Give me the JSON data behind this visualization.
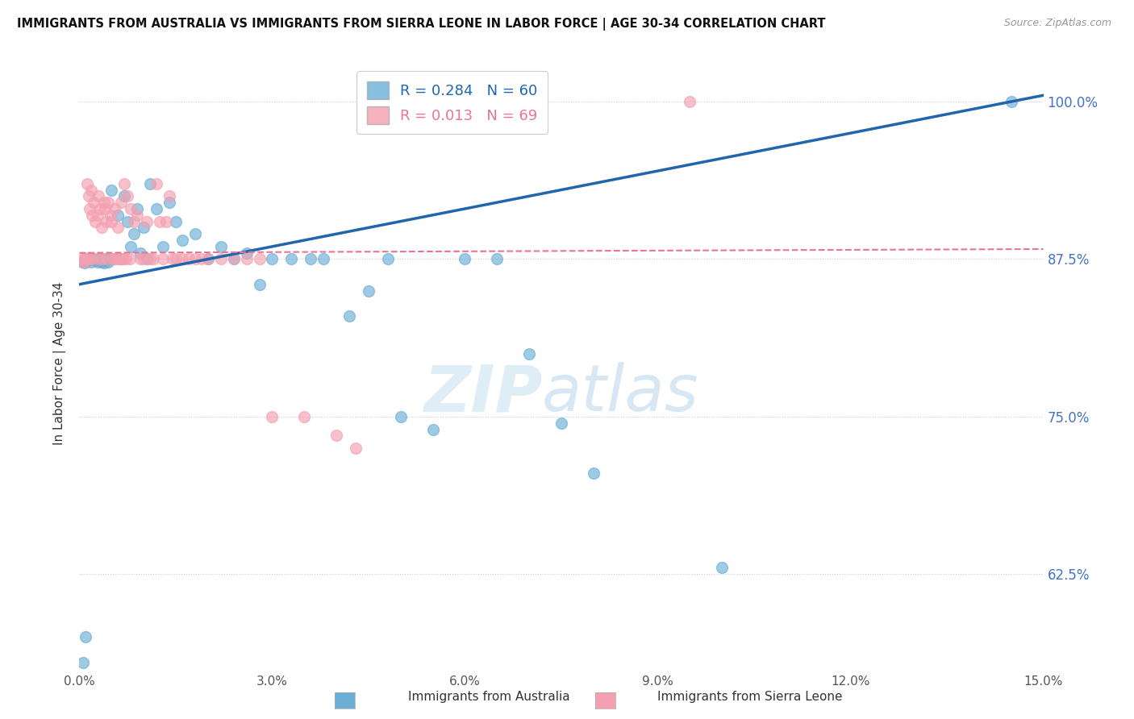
{
  "title": "IMMIGRANTS FROM AUSTRALIA VS IMMIGRANTS FROM SIERRA LEONE IN LABOR FORCE | AGE 30-34 CORRELATION CHART",
  "source": "Source: ZipAtlas.com",
  "ylabel": "In Labor Force | Age 30-34",
  "xlim": [
    0.0,
    15.0
  ],
  "ylim": [
    55.0,
    103.5
  ],
  "yticks": [
    62.5,
    75.0,
    87.5,
    100.0
  ],
  "xticks": [
    0.0,
    3.0,
    6.0,
    9.0,
    12.0,
    15.0
  ],
  "xtick_labels": [
    "0.0%",
    "3.0%",
    "6.0%",
    "9.0%",
    "12.0%",
    "15.0%"
  ],
  "ytick_labels": [
    "62.5%",
    "75.0%",
    "87.5%",
    "100.0%"
  ],
  "legend_australia": "R = 0.284   N = 60",
  "legend_sierraleone": "R = 0.013   N = 69",
  "legend_label_australia": "Immigrants from Australia",
  "legend_label_sierraleone": "Immigrants from Sierra Leone",
  "color_australia": "#6baed6",
  "color_sierraleone": "#f4a0b0",
  "trendline_australia_color": "#2166ac",
  "trendline_sierraleone_color": "#e87496",
  "watermark_zip": "ZIP",
  "watermark_atlas": "atlas",
  "trendline_aus_x0": 0.0,
  "trendline_aus_y0": 85.5,
  "trendline_aus_x1": 15.0,
  "trendline_aus_y1": 100.5,
  "trendline_sl_x0": 0.0,
  "trendline_sl_y0": 88.0,
  "trendline_sl_x1": 15.0,
  "trendline_sl_y1": 88.3,
  "australia_x": [
    0.05,
    0.08,
    0.1,
    0.12,
    0.15,
    0.18,
    0.2,
    0.22,
    0.25,
    0.28,
    0.3,
    0.32,
    0.35,
    0.38,
    0.4,
    0.42,
    0.45,
    0.48,
    0.5,
    0.55,
    0.6,
    0.65,
    0.7,
    0.75,
    0.8,
    0.85,
    0.9,
    0.95,
    1.0,
    1.05,
    1.1,
    1.2,
    1.3,
    1.4,
    1.5,
    1.6,
    1.8,
    2.0,
    2.2,
    2.4,
    2.6,
    2.8,
    3.0,
    3.3,
    3.6,
    3.8,
    4.2,
    4.5,
    4.8,
    5.0,
    5.5,
    6.0,
    6.5,
    7.0,
    7.5,
    8.0,
    10.0,
    14.5,
    0.06,
    0.09
  ],
  "australia_y": [
    87.3,
    87.2,
    87.5,
    87.4,
    87.6,
    87.3,
    87.5,
    87.5,
    87.4,
    87.3,
    87.5,
    87.5,
    87.3,
    87.2,
    87.5,
    87.5,
    87.3,
    87.5,
    93.0,
    87.5,
    91.0,
    87.5,
    92.5,
    90.5,
    88.5,
    89.5,
    91.5,
    88.0,
    90.0,
    87.5,
    93.5,
    91.5,
    88.5,
    92.0,
    90.5,
    89.0,
    89.5,
    87.5,
    88.5,
    87.5,
    88.0,
    85.5,
    87.5,
    87.5,
    87.5,
    87.5,
    83.0,
    85.0,
    87.5,
    75.0,
    74.0,
    87.5,
    87.5,
    80.0,
    74.5,
    70.5,
    63.0,
    100.0,
    55.5,
    57.5
  ],
  "sierraleone_x": [
    0.04,
    0.06,
    0.08,
    0.1,
    0.12,
    0.14,
    0.16,
    0.18,
    0.2,
    0.22,
    0.25,
    0.28,
    0.3,
    0.32,
    0.35,
    0.38,
    0.4,
    0.42,
    0.45,
    0.48,
    0.5,
    0.52,
    0.55,
    0.58,
    0.6,
    0.62,
    0.65,
    0.68,
    0.7,
    0.72,
    0.75,
    0.78,
    0.8,
    0.85,
    0.9,
    0.95,
    1.0,
    1.05,
    1.1,
    1.15,
    1.2,
    1.25,
    1.3,
    1.35,
    1.4,
    1.45,
    1.5,
    1.6,
    1.7,
    1.8,
    1.9,
    2.0,
    2.2,
    2.4,
    2.6,
    2.8,
    3.0,
    3.5,
    4.0,
    4.3,
    0.09,
    0.15,
    0.2,
    0.28,
    0.35,
    0.42,
    0.55,
    0.65,
    9.5
  ],
  "sierraleone_y": [
    87.5,
    87.3,
    87.5,
    87.4,
    93.5,
    92.5,
    91.5,
    93.0,
    91.0,
    92.0,
    90.5,
    91.0,
    92.5,
    91.5,
    90.0,
    92.0,
    91.5,
    90.5,
    92.0,
    91.0,
    90.5,
    87.5,
    91.5,
    87.5,
    90.0,
    87.5,
    92.0,
    87.5,
    93.5,
    87.5,
    92.5,
    87.5,
    91.5,
    90.5,
    91.0,
    87.5,
    87.5,
    90.5,
    87.5,
    87.5,
    93.5,
    90.5,
    87.5,
    90.5,
    92.5,
    87.5,
    87.5,
    87.5,
    87.5,
    87.5,
    87.5,
    87.5,
    87.5,
    87.5,
    87.5,
    87.5,
    75.0,
    75.0,
    73.5,
    72.5,
    87.5,
    87.5,
    87.5,
    87.5,
    87.5,
    87.5,
    87.5,
    87.5,
    100.0
  ]
}
